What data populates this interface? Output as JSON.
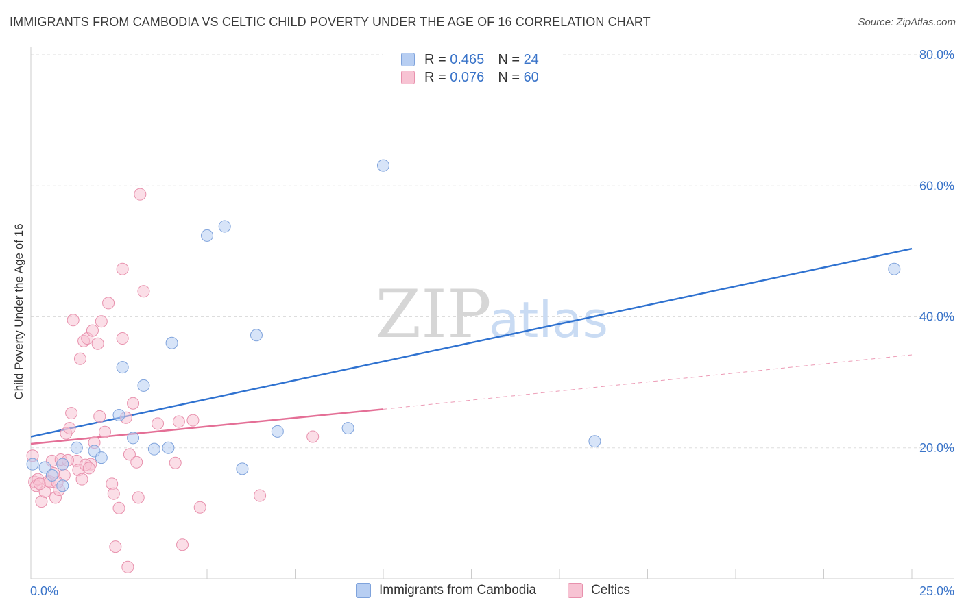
{
  "title": "IMMIGRANTS FROM CAMBODIA VS CELTIC CHILD POVERTY UNDER THE AGE OF 16 CORRELATION CHART",
  "source": "Source: ZipAtlas.com",
  "watermark": {
    "zip": "ZIP",
    "atlas": "atlas"
  },
  "legend": {
    "rows": [
      {
        "r_label": "R =",
        "r_value": "0.465",
        "n_label": "N =",
        "n_value": "24"
      },
      {
        "r_label": "R =",
        "r_value": "0.076",
        "n_label": "N =",
        "n_value": "60"
      }
    ]
  },
  "colors": {
    "blue_fill": "#b7cef2",
    "blue_stroke": "#7fa3dc",
    "blue_line": "#2f72d0",
    "pink_fill": "#f7c3d3",
    "pink_stroke": "#e891ad",
    "pink_line": "#e46f96",
    "tick_text": "#3a74c9",
    "grid": "#dddddd"
  },
  "chart_data": {
    "type": "scatter",
    "title": "IMMIGRANTS FROM CAMBODIA VS CELTIC CHILD POVERTY UNDER THE AGE OF 16 CORRELATION CHART",
    "xlabel": "",
    "ylabel": "Child Poverty Under the Age of 16",
    "xlim": [
      0,
      25
    ],
    "ylim": [
      0,
      81
    ],
    "x_tick_labels": [
      "0.0%",
      "25.0%"
    ],
    "y_ticks": [
      20,
      40,
      60,
      80
    ],
    "y_tick_labels": [
      "20.0%",
      "40.0%",
      "60.0%",
      "80.0%"
    ],
    "series": [
      {
        "name": "Immigrants from Cambodia",
        "color": "blue",
        "points": [
          [
            0.05,
            17.5
          ],
          [
            0.4,
            17
          ],
          [
            0.6,
            15.8
          ],
          [
            0.9,
            17.5
          ],
          [
            1.3,
            20
          ],
          [
            0.9,
            14.2
          ],
          [
            1.8,
            19.5
          ],
          [
            2.0,
            18.5
          ],
          [
            2.5,
            25
          ],
          [
            2.6,
            32.3
          ],
          [
            2.9,
            21.5
          ],
          [
            3.2,
            29.5
          ],
          [
            3.5,
            19.8
          ],
          [
            3.9,
            20
          ],
          [
            4.0,
            36
          ],
          [
            5.0,
            52.4
          ],
          [
            5.5,
            53.8
          ],
          [
            6.0,
            16.8
          ],
          [
            6.4,
            37.2
          ],
          [
            7.0,
            22.5
          ],
          [
            9.0,
            23
          ],
          [
            10.0,
            63.1
          ],
          [
            16.0,
            21
          ],
          [
            24.5,
            47.3
          ]
        ],
        "trend": {
          "x0": 0,
          "y0": 21.7,
          "x1": 25,
          "y1": 50.4
        }
      },
      {
        "name": "Celtics",
        "color": "pink",
        "points": [
          [
            0.05,
            18.8
          ],
          [
            0.1,
            14.8
          ],
          [
            0.15,
            14.2
          ],
          [
            0.2,
            15.2
          ],
          [
            0.3,
            11.8
          ],
          [
            0.4,
            13.3
          ],
          [
            0.5,
            14.9
          ],
          [
            0.6,
            18
          ],
          [
            0.7,
            12.4
          ],
          [
            0.8,
            13.6
          ],
          [
            0.9,
            17.5
          ],
          [
            0.95,
            15.8
          ],
          [
            1.0,
            22.2
          ],
          [
            1.1,
            23
          ],
          [
            1.15,
            25.3
          ],
          [
            1.2,
            39.5
          ],
          [
            1.3,
            18
          ],
          [
            1.35,
            16.6
          ],
          [
            1.4,
            33.6
          ],
          [
            1.45,
            15.2
          ],
          [
            1.5,
            36.3
          ],
          [
            1.6,
            36.7
          ],
          [
            1.7,
            17.5
          ],
          [
            1.75,
            37.9
          ],
          [
            1.8,
            20.8
          ],
          [
            1.9,
            35.9
          ],
          [
            1.95,
            24.8
          ],
          [
            2.0,
            39.3
          ],
          [
            2.1,
            22.4
          ],
          [
            2.2,
            42.1
          ],
          [
            2.3,
            14.5
          ],
          [
            2.35,
            13
          ],
          [
            2.4,
            4.9
          ],
          [
            2.5,
            10.8
          ],
          [
            2.6,
            47.3
          ],
          [
            2.6,
            36.7
          ],
          [
            2.7,
            24.6
          ],
          [
            2.75,
            1.8
          ],
          [
            2.8,
            19
          ],
          [
            2.9,
            26.8
          ],
          [
            3.0,
            17.8
          ],
          [
            3.05,
            12.4
          ],
          [
            3.1,
            58.7
          ],
          [
            3.2,
            43.9
          ],
          [
            3.6,
            23.7
          ],
          [
            4.1,
            17.7
          ],
          [
            4.2,
            24
          ],
          [
            4.3,
            5.2
          ],
          [
            4.6,
            24.2
          ],
          [
            4.8,
            10.9
          ],
          [
            6.5,
            12.7
          ],
          [
            8.0,
            21.7
          ],
          [
            0.25,
            14.5
          ],
          [
            0.55,
            14.8
          ],
          [
            0.65,
            16.1
          ],
          [
            0.75,
            14.7
          ],
          [
            0.85,
            18.2
          ],
          [
            1.05,
            18.1
          ],
          [
            1.55,
            17.4
          ],
          [
            1.65,
            16.9
          ]
        ],
        "trend": {
          "x0": 0,
          "y0": 20.6,
          "x1": 10,
          "y1": 25.9
        },
        "trend_ext": {
          "x0": 10,
          "y0": 25.9,
          "x1": 25,
          "y1": 34.2
        }
      }
    ]
  },
  "bottom_legend": {
    "items": [
      {
        "label": "Immigrants from Cambodia"
      },
      {
        "label": "Celtics"
      }
    ]
  }
}
